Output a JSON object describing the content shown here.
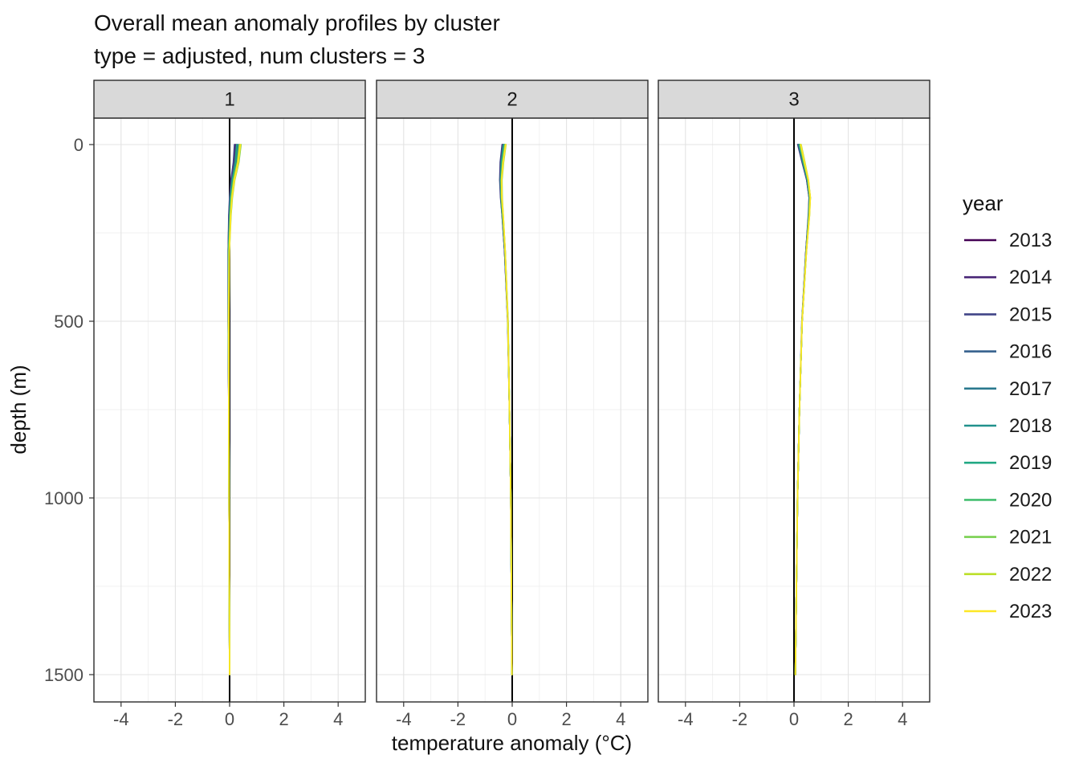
{
  "chart": {
    "title": "Overall mean anomaly profiles by cluster",
    "subtitle": "type = adjusted, num clusters = 3"
  },
  "style": {
    "strip_fill": "#D9D9D9",
    "grid_major": "#E3E3E3",
    "grid_minor": "#F0F0F0",
    "panel_border": "#2B2B2B",
    "tick_label_color": "#4D4D4D",
    "reference_line_color": "#000000"
  },
  "chart_data": {
    "type": "line",
    "title": "Overall mean anomaly profiles by cluster",
    "subtitle": "type = adjusted, num clusters = 3",
    "xlabel": "temperature anomaly (°C)",
    "ylabel": "depth (m)",
    "xlim": [
      -5,
      5
    ],
    "x_ticks": [
      -4,
      -2,
      0,
      2,
      4
    ],
    "x_minor_ticks": [
      -3,
      -1,
      1,
      3
    ],
    "depth_range": [
      0,
      1500
    ],
    "y_ticks": [
      0,
      500,
      1000,
      1500
    ],
    "y_minor_ticks": [
      250,
      750,
      1250
    ],
    "y_axis_reversed": true,
    "grid": true,
    "legend_title": "year",
    "legend_position": "right",
    "reference_line_x": 0,
    "facet_labels": [
      "1",
      "2",
      "3"
    ],
    "years": [
      "2013",
      "2014",
      "2015",
      "2016",
      "2017",
      "2018",
      "2019",
      "2020",
      "2021",
      "2022",
      "2023"
    ],
    "colors": [
      "#440154",
      "#482576",
      "#414487",
      "#35608D",
      "#2A788E",
      "#21918C",
      "#22A884",
      "#44BF70",
      "#7AD151",
      "#BBDF27",
      "#FDE725"
    ],
    "depths": [
      0,
      50,
      100,
      150,
      200,
      300,
      500,
      750,
      1000,
      1500
    ],
    "panels": [
      {
        "facet": "1",
        "series": [
          {
            "name": "2013",
            "values": [
              0.2,
              0.16,
              0.07,
              0.01,
              -0.02,
              -0.05,
              -0.05,
              -0.03,
              -0.02,
              0
            ]
          },
          {
            "name": "2014",
            "values": [
              0.24,
              0.19,
              0.09,
              0.03,
              -0.01,
              -0.04,
              -0.04,
              -0.03,
              -0.02,
              0
            ]
          },
          {
            "name": "2015",
            "values": [
              0.18,
              0.14,
              0.05,
              0.0,
              -0.03,
              -0.05,
              -0.05,
              -0.03,
              -0.02,
              0
            ]
          },
          {
            "name": "2016",
            "values": [
              0.28,
              0.22,
              0.11,
              0.04,
              0.0,
              -0.03,
              -0.04,
              -0.03,
              -0.02,
              0
            ]
          },
          {
            "name": "2017",
            "values": [
              0.3,
              0.24,
              0.12,
              0.05,
              0.01,
              -0.03,
              -0.04,
              -0.03,
              -0.02,
              0
            ]
          },
          {
            "name": "2018",
            "values": [
              0.34,
              0.27,
              0.14,
              0.07,
              0.02,
              -0.02,
              -0.04,
              -0.03,
              -0.02,
              0
            ]
          },
          {
            "name": "2019",
            "values": [
              0.26,
              0.21,
              0.1,
              0.03,
              0.0,
              -0.04,
              -0.04,
              -0.03,
              -0.02,
              0
            ]
          },
          {
            "name": "2020",
            "values": [
              0.38,
              0.3,
              0.16,
              0.08,
              0.03,
              -0.02,
              -0.03,
              -0.03,
              -0.02,
              0
            ]
          },
          {
            "name": "2021",
            "values": [
              0.42,
              0.34,
              0.19,
              0.1,
              0.05,
              -0.01,
              -0.03,
              -0.03,
              -0.02,
              0
            ]
          },
          {
            "name": "2022",
            "values": [
              0.36,
              0.29,
              0.15,
              0.07,
              0.03,
              -0.02,
              -0.04,
              -0.03,
              -0.02,
              0
            ]
          },
          {
            "name": "2023",
            "values": [
              0.4,
              0.32,
              0.18,
              0.09,
              0.04,
              -0.01,
              -0.03,
              -0.03,
              -0.02,
              0
            ]
          }
        ]
      },
      {
        "facet": "2",
        "series": [
          {
            "name": "2013",
            "values": [
              -0.36,
              -0.43,
              -0.45,
              -0.42,
              -0.37,
              -0.28,
              -0.16,
              -0.1,
              -0.05,
              -0.01
            ]
          },
          {
            "name": "2014",
            "values": [
              -0.34,
              -0.41,
              -0.44,
              -0.41,
              -0.36,
              -0.28,
              -0.16,
              -0.1,
              -0.05,
              -0.01
            ]
          },
          {
            "name": "2015",
            "values": [
              -0.37,
              -0.44,
              -0.46,
              -0.43,
              -0.37,
              -0.28,
              -0.17,
              -0.1,
              -0.05,
              -0.01
            ]
          },
          {
            "name": "2016",
            "values": [
              -0.31,
              -0.39,
              -0.43,
              -0.4,
              -0.35,
              -0.27,
              -0.16,
              -0.1,
              -0.05,
              -0.01
            ]
          },
          {
            "name": "2017",
            "values": [
              -0.3,
              -0.38,
              -0.42,
              -0.4,
              -0.35,
              -0.27,
              -0.16,
              -0.1,
              -0.05,
              -0.01
            ]
          },
          {
            "name": "2018",
            "values": [
              -0.28,
              -0.36,
              -0.41,
              -0.39,
              -0.34,
              -0.27,
              -0.16,
              -0.1,
              -0.05,
              -0.01
            ]
          },
          {
            "name": "2019",
            "values": [
              -0.32,
              -0.4,
              -0.43,
              -0.41,
              -0.36,
              -0.27,
              -0.16,
              -0.1,
              -0.05,
              -0.01
            ]
          },
          {
            "name": "2020",
            "values": [
              -0.25,
              -0.34,
              -0.39,
              -0.38,
              -0.34,
              -0.26,
              -0.16,
              -0.1,
              -0.05,
              -0.01
            ]
          },
          {
            "name": "2021",
            "values": [
              -0.23,
              -0.32,
              -0.38,
              -0.37,
              -0.33,
              -0.26,
              -0.15,
              -0.1,
              -0.05,
              -0.01
            ]
          },
          {
            "name": "2022",
            "values": [
              -0.26,
              -0.35,
              -0.4,
              -0.39,
              -0.34,
              -0.26,
              -0.16,
              -0.1,
              -0.05,
              -0.01
            ]
          },
          {
            "name": "2023",
            "values": [
              -0.24,
              -0.33,
              -0.39,
              -0.38,
              -0.33,
              -0.26,
              -0.16,
              -0.1,
              -0.05,
              -0.01
            ]
          }
        ]
      },
      {
        "facet": "3",
        "series": [
          {
            "name": "2013",
            "values": [
              0.15,
              0.31,
              0.47,
              0.56,
              0.54,
              0.44,
              0.3,
              0.2,
              0.13,
              0.05
            ]
          },
          {
            "name": "2014",
            "values": [
              0.17,
              0.33,
              0.48,
              0.57,
              0.54,
              0.44,
              0.3,
              0.2,
              0.13,
              0.05
            ]
          },
          {
            "name": "2015",
            "values": [
              0.14,
              0.3,
              0.47,
              0.56,
              0.53,
              0.44,
              0.29,
              0.2,
              0.13,
              0.05
            ]
          },
          {
            "name": "2016",
            "values": [
              0.19,
              0.34,
              0.49,
              0.58,
              0.55,
              0.45,
              0.3,
              0.2,
              0.13,
              0.05
            ]
          },
          {
            "name": "2017",
            "values": [
              0.2,
              0.35,
              0.5,
              0.58,
              0.55,
              0.45,
              0.3,
              0.2,
              0.13,
              0.05
            ]
          },
          {
            "name": "2018",
            "values": [
              0.22,
              0.37,
              0.51,
              0.59,
              0.56,
              0.45,
              0.3,
              0.2,
              0.13,
              0.05
            ]
          },
          {
            "name": "2019",
            "values": [
              0.18,
              0.33,
              0.49,
              0.57,
              0.54,
              0.45,
              0.3,
              0.2,
              0.13,
              0.05
            ]
          },
          {
            "name": "2020",
            "values": [
              0.24,
              0.38,
              0.52,
              0.6,
              0.56,
              0.46,
              0.3,
              0.2,
              0.13,
              0.05
            ]
          },
          {
            "name": "2021",
            "values": [
              0.26,
              0.4,
              0.53,
              0.6,
              0.57,
              0.46,
              0.3,
              0.2,
              0.13,
              0.05
            ]
          },
          {
            "name": "2022",
            "values": [
              0.23,
              0.37,
              0.52,
              0.59,
              0.56,
              0.46,
              0.3,
              0.2,
              0.13,
              0.05
            ]
          },
          {
            "name": "2023",
            "values": [
              0.25,
              0.39,
              0.53,
              0.6,
              0.57,
              0.46,
              0.3,
              0.2,
              0.13,
              0.05
            ]
          }
        ]
      }
    ]
  }
}
